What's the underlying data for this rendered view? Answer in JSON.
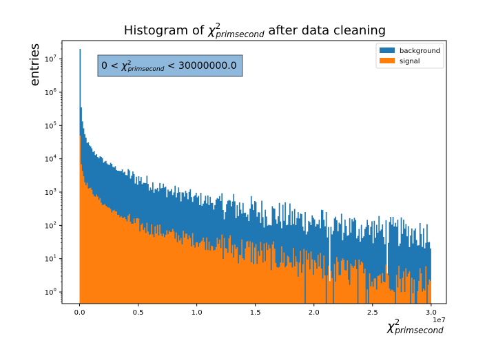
{
  "chart_data": {
    "type": "bar",
    "histogram": true,
    "title_prefix": "Histogram of ",
    "title_sym": "χ",
    "title_sup": "2",
    "title_sub": "primsecond",
    "title_suffix": " after data cleaning",
    "ylabel": "entries",
    "xlabel_sym": "χ",
    "xlabel_sup": "2",
    "xlabel_sub": "primsecond",
    "x_offset_label": "1e7",
    "xlim": [
      -0.15,
      3.13
    ],
    "ylim_log10": [
      -0.35,
      7.55
    ],
    "yscale": "log",
    "x_ticks": [
      0.0,
      0.5,
      1.0,
      1.5,
      2.0,
      2.5,
      3.0
    ],
    "x_tick_labels": [
      "0.0",
      "0.5",
      "1.0",
      "1.5",
      "2.0",
      "2.5",
      "3.0"
    ],
    "y_tick_exponents": [
      0,
      1,
      2,
      3,
      4,
      5,
      6,
      7
    ],
    "annotation": {
      "prefix": "0 < ",
      "sym": "χ",
      "sup": "2",
      "sub": "primsecond",
      "suffix": " < 30000000.0"
    },
    "legend": {
      "position": "top-right",
      "entries": [
        {
          "label": "background",
          "color": "#1f77b4"
        },
        {
          "label": "signal",
          "color": "#ff7f0e"
        }
      ]
    },
    "bin_range": [
      0,
      3.0
    ],
    "bin_count": 300,
    "series": [
      {
        "name": "background",
        "color": "#1f77b4",
        "envelope": [
          [
            0.0,
            20000000.0
          ],
          [
            0.01,
            700000.0
          ],
          [
            0.02,
            200000.0
          ],
          [
            0.03,
            80000.0
          ],
          [
            0.05,
            45000.0
          ],
          [
            0.08,
            25000.0
          ],
          [
            0.12,
            16000.0
          ],
          [
            0.2,
            9000
          ],
          [
            0.3,
            5500
          ],
          [
            0.4,
            3500
          ],
          [
            0.5,
            2500
          ],
          [
            0.6,
            1800
          ],
          [
            0.7,
            1300
          ],
          [
            0.8,
            1000
          ],
          [
            1.0,
            650
          ],
          [
            1.2,
            450
          ],
          [
            1.4,
            320
          ],
          [
            1.6,
            230
          ],
          [
            1.8,
            170
          ],
          [
            2.0,
            130
          ],
          [
            2.2,
            100
          ],
          [
            2.4,
            80
          ],
          [
            2.6,
            70
          ],
          [
            2.8,
            60
          ],
          [
            3.0,
            55
          ]
        ]
      },
      {
        "name": "signal",
        "color": "#ff7f0e",
        "envelope": [
          [
            0.0,
            50000.0
          ],
          [
            0.01,
            9000
          ],
          [
            0.03,
            3500
          ],
          [
            0.05,
            2000
          ],
          [
            0.1,
            1100
          ],
          [
            0.2,
            450
          ],
          [
            0.3,
            250
          ],
          [
            0.4,
            150
          ],
          [
            0.5,
            100
          ],
          [
            0.6,
            80
          ],
          [
            0.8,
            50
          ],
          [
            1.0,
            35
          ],
          [
            1.2,
            25
          ],
          [
            1.4,
            18
          ],
          [
            1.6,
            13
          ],
          [
            1.8,
            9
          ],
          [
            2.0,
            6
          ],
          [
            2.2,
            4.5
          ],
          [
            2.4,
            3.5
          ],
          [
            2.6,
            3
          ],
          [
            2.8,
            2.5
          ],
          [
            3.0,
            2.5
          ]
        ]
      }
    ]
  }
}
